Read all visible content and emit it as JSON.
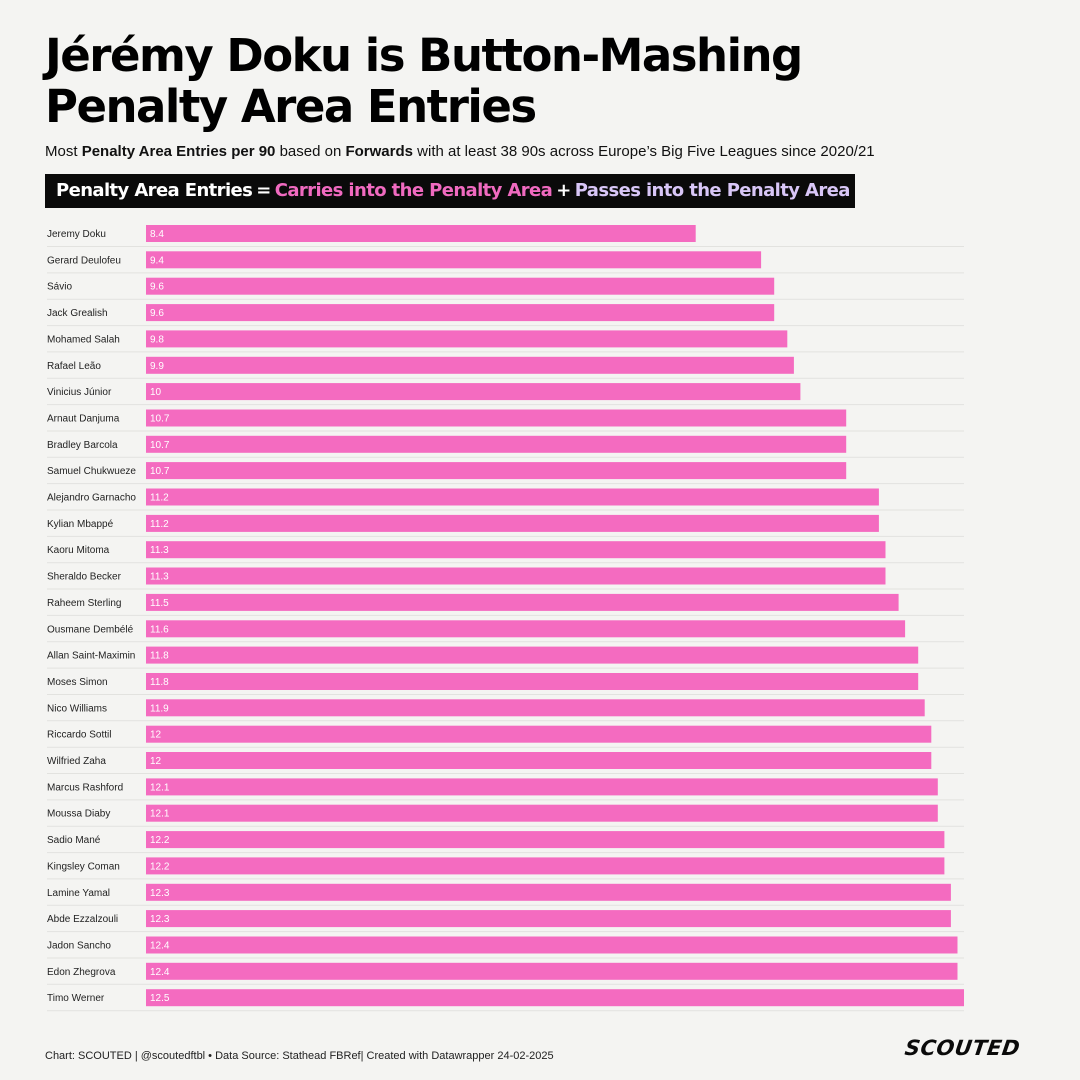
{
  "header": {
    "title_line1": "Jérémy Doku is Button-Mashing",
    "title_line2": "Penalty Area Entries",
    "subtitle": {
      "p1": "Most ",
      "b1": "Penalty Area Entries per 90",
      "p2": " based on ",
      "b2": "Forwards",
      "p3": " with at least 38 90s across Europe’s Big Five Leagues since 2020/21"
    },
    "formula": {
      "total": "Penalty Area Entries",
      "equals": "=",
      "carries": "Carries into the Penalty Area",
      "plus": "+",
      "passes": "Passes into the Penalty Area"
    }
  },
  "colors": {
    "bar": "#f46bc0",
    "carries": "#f06ac0",
    "passes": "#d8c6f7",
    "formula_bg": "#0a0a0a",
    "background": "#f4f4f2"
  },
  "chart_data": {
    "type": "bar",
    "orientation": "horizontal",
    "title": "",
    "xlabel": "",
    "ylabel": "",
    "grid": false,
    "xlim": [
      0,
      12.5
    ],
    "categories": [
      "Jeremy Doku",
      "Gerard Deulofeu",
      "Sávio",
      "Jack Grealish",
      "Mohamed Salah",
      "Rafael Leão",
      "Vinicius Júnior",
      "Arnaut Danjuma",
      "Bradley Barcola",
      "Samuel Chukwueze",
      "Alejandro Garnacho",
      "Kylian Mbappé",
      "Kaoru Mitoma",
      "Sheraldo Becker",
      "Raheem Sterling",
      "Ousmane Dembélé",
      "Allan Saint-Maximin",
      "Moses Simon",
      "Nico Williams",
      "Riccardo Sottil",
      "Wilfried Zaha",
      "Marcus Rashford",
      "Moussa Diaby",
      "Sadio Mané",
      "Kingsley Coman",
      "Lamine Yamal",
      "Abde Ezzalzouli",
      "Jadon Sancho",
      "Edon Zhegrova",
      "Timo Werner"
    ],
    "values": [
      8.4,
      9.4,
      9.6,
      9.6,
      9.8,
      9.9,
      10,
      10.7,
      10.7,
      10.7,
      11.2,
      11.2,
      11.3,
      11.3,
      11.5,
      11.6,
      11.8,
      11.8,
      11.9,
      12,
      12,
      12.1,
      12.1,
      12.2,
      12.2,
      12.3,
      12.3,
      12.4,
      12.4,
      12.5
    ]
  },
  "footer": {
    "credit": "Chart: SCOUTED | @scoutedftbl • Data Source: Stathead FBRef| Created with Datawrapper 24-02-2025",
    "logo": "SCOUTED"
  }
}
